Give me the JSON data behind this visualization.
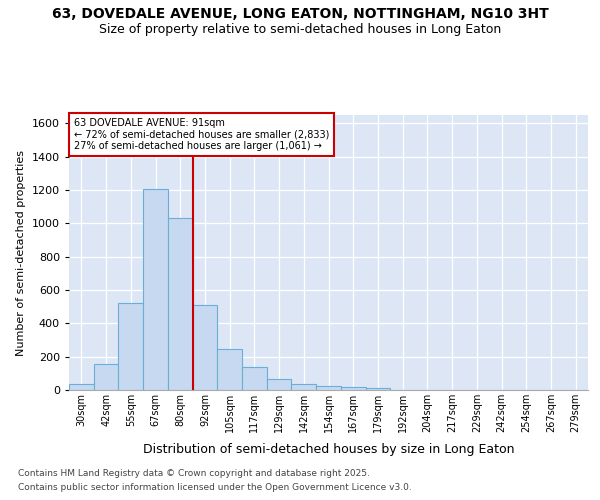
{
  "title_line1": "63, DOVEDALE AVENUE, LONG EATON, NOTTINGHAM, NG10 3HT",
  "title_line2": "Size of property relative to semi-detached houses in Long Eaton",
  "xlabel": "Distribution of semi-detached houses by size in Long Eaton",
  "ylabel": "Number of semi-detached properties",
  "bins": [
    "30sqm",
    "42sqm",
    "55sqm",
    "67sqm",
    "80sqm",
    "92sqm",
    "105sqm",
    "117sqm",
    "129sqm",
    "142sqm",
    "154sqm",
    "167sqm",
    "179sqm",
    "192sqm",
    "204sqm",
    "217sqm",
    "229sqm",
    "242sqm",
    "254sqm",
    "267sqm",
    "279sqm"
  ],
  "bar_values": [
    35,
    158,
    525,
    1205,
    1035,
    510,
    248,
    140,
    68,
    35,
    25,
    20,
    15,
    0,
    0,
    0,
    0,
    0,
    0,
    0,
    0
  ],
  "bar_color": "#c6d9f0",
  "bar_edge_color": "#6baed6",
  "property_label": "63 DOVEDALE AVENUE: 91sqm",
  "pct_smaller": 72,
  "pct_larger": 27,
  "n_smaller": 2833,
  "n_larger": 1061,
  "vline_color": "#cc0000",
  "background_color": "#dce6f5",
  "annotation_box_color": "#cc0000",
  "ylim": [
    0,
    1650
  ],
  "yticks": [
    0,
    200,
    400,
    600,
    800,
    1000,
    1200,
    1400,
    1600
  ],
  "footer_line1": "Contains HM Land Registry data © Crown copyright and database right 2025.",
  "footer_line2": "Contains public sector information licensed under the Open Government Licence v3.0."
}
